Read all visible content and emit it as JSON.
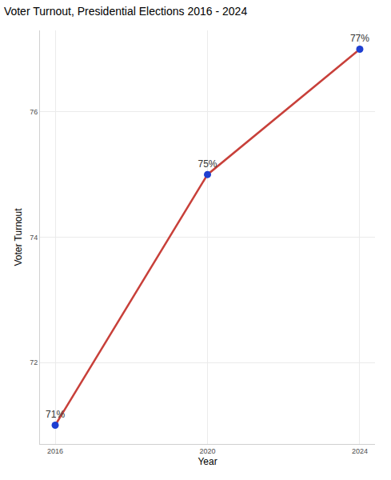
{
  "chart_data": {
    "type": "line",
    "title": "Voter Turnout, Presidential Elections 2016 - 2024",
    "x_label": "Year",
    "y_label": "Voter Turnout",
    "x": [
      2016,
      2020,
      2024
    ],
    "values": [
      71,
      75,
      77
    ],
    "value_labels": [
      "71%",
      "75%",
      "77%"
    ],
    "data_labels": true,
    "color": "#c8403a",
    "marker": "circle",
    "xlim": [
      2015.6,
      2024.4
    ],
    "xticks": [
      2016,
      2020,
      2024
    ],
    "ylim": [
      70.7,
      77.3
    ],
    "yticks": [
      72,
      74,
      76
    ],
    "grid": true
  }
}
